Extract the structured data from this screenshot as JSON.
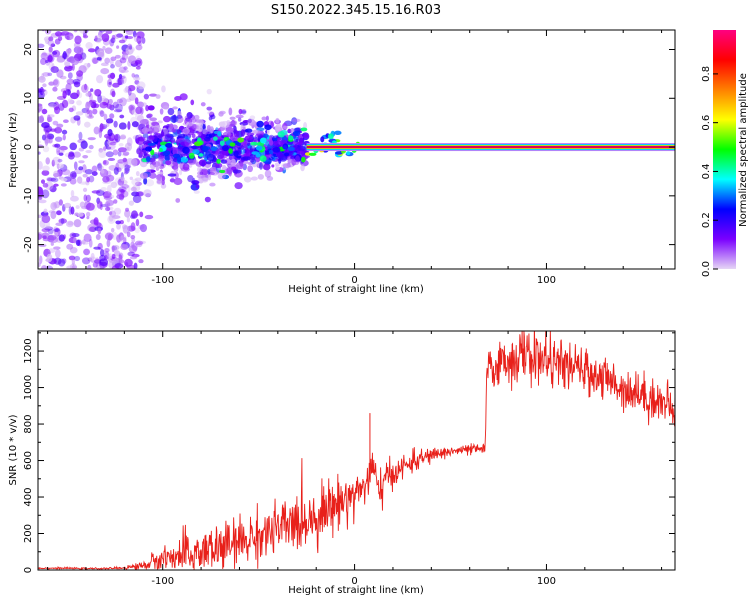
{
  "figure": {
    "title": "S150.2022.345.15.16.R03"
  },
  "chart_data": [
    {
      "type": "heatmap",
      "xlabel": "Height of straight line (km)",
      "ylabel": "Frequency (Hz)",
      "xlim": [
        -165,
        167
      ],
      "ylim": [
        -25,
        24
      ],
      "xticks": [
        -100,
        0,
        100
      ],
      "yticks": [
        -20,
        -10,
        0,
        10,
        20
      ],
      "colorbar": {
        "label": "Normalized spectral amplitude",
        "range": [
          0,
          0.98
        ],
        "ticks": [
          0.0,
          0.2,
          0.4,
          0.6,
          0.8
        ],
        "colormap": [
          "#e6d6f5",
          "#7a00ff",
          "#0000ff",
          "#00ffff",
          "#00ff00",
          "#ffff00",
          "#ff8000",
          "#ff0000",
          "#ff0080"
        ]
      },
      "features": {
        "scatter_region_x": [
          -165,
          -120
        ],
        "cluster_region_x": [
          -110,
          -25
        ],
        "narrow_band_x": [
          -25,
          167
        ],
        "narrow_band_frequency": 0,
        "band_color": "#e0005a"
      }
    },
    {
      "type": "line",
      "xlabel": "Height of straight line (km)",
      "ylabel": "SNR (10 * v/v)",
      "xlim": [
        -165,
        167
      ],
      "ylim": [
        0,
        1310
      ],
      "xticks": [
        -100,
        0,
        100
      ],
      "yticks": [
        0,
        200,
        400,
        600,
        800,
        1000,
        1200
      ],
      "series": [
        {
          "color": "#e8201a",
          "x": [
            -165,
            -150,
            -140,
            -130,
            -120,
            -110,
            -100,
            -90,
            -80,
            -70,
            -60,
            -50,
            -40,
            -30,
            -20,
            -10,
            0,
            5,
            8,
            10,
            12,
            15,
            20,
            30,
            40,
            50,
            60,
            68,
            69,
            70,
            80,
            90,
            100,
            110,
            120,
            130,
            140,
            150,
            160,
            167
          ],
          "y": [
            10,
            10,
            8,
            8,
            12,
            25,
            60,
            75,
            95,
            120,
            150,
            190,
            220,
            260,
            300,
            360,
            420,
            460,
            520,
            560,
            420,
            480,
            530,
            590,
            630,
            650,
            660,
            665,
            1080,
            1100,
            1150,
            1180,
            1150,
            1120,
            1090,
            1050,
            1000,
            960,
            920,
            880
          ],
          "noise": [
            2,
            2,
            2,
            2,
            4,
            12,
            40,
            60,
            70,
            70,
            70,
            70,
            75,
            80,
            80,
            70,
            60,
            55,
            60,
            80,
            60,
            50,
            40,
            30,
            20,
            15,
            15,
            15,
            40,
            50,
            70,
            80,
            70,
            60,
            60,
            60,
            60,
            60,
            60,
            60
          ]
        }
      ],
      "spike": {
        "x": 8,
        "y": 860
      }
    }
  ]
}
